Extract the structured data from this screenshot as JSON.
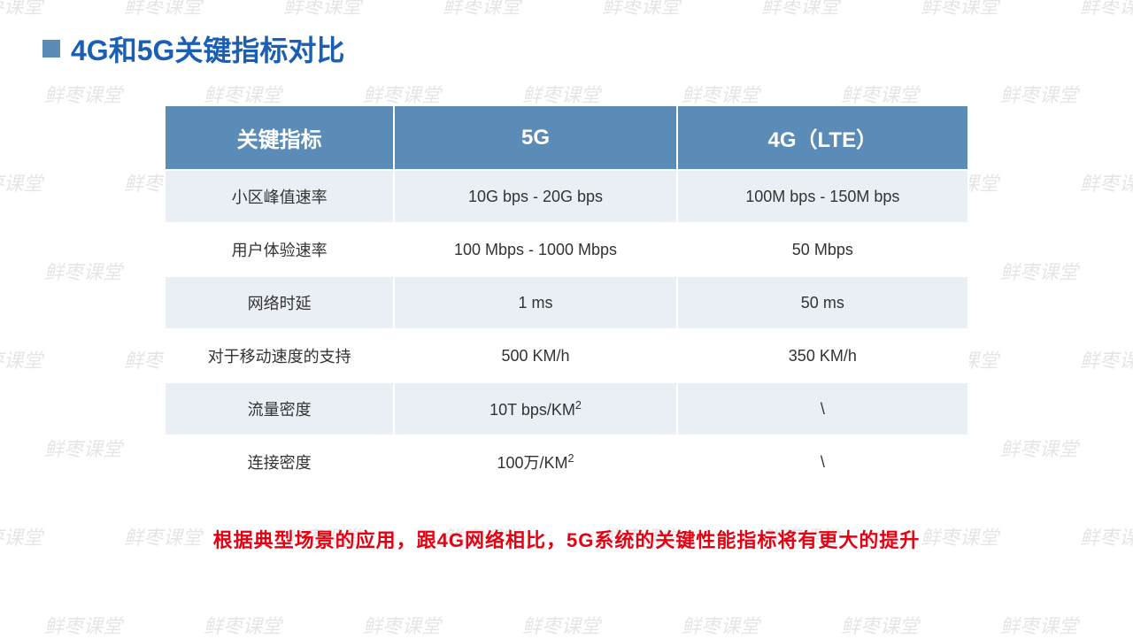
{
  "watermark_text": "鲜枣课堂",
  "title": "4G和5G关键指标对比",
  "table": {
    "columns": [
      "关键指标",
      "5G",
      "4G（LTE）"
    ],
    "rows": [
      [
        "小区峰值速率",
        "10G bps - 20G bps",
        "100M bps - 150M bps"
      ],
      [
        "用户体验速率",
        "100 Mbps - 1000 Mbps",
        "50 Mbps"
      ],
      [
        "网络时延",
        "1 ms",
        "50 ms"
      ],
      [
        "对于移动速度的支持",
        "500 KM/h",
        "350 KM/h"
      ],
      [
        "流量密度",
        "10T bps/KM²",
        "\\"
      ],
      [
        "连接密度",
        "100万/KM²",
        "\\"
      ]
    ],
    "header_bg": "#5b8cb8",
    "header_color": "#ffffff",
    "row_odd_bg": "#eaeff5",
    "row_even_bg": "#ffffff",
    "text_color": "#333333",
    "header_fontsize": 24,
    "cell_fontsize": 18
  },
  "footer": "根据典型场景的应用，跟4G网络相比，5G系统的关键性能指标将有更大的提升",
  "colors": {
    "title": "#1a5fb4",
    "bullet": "#5b8cb8",
    "footer": "#e60012",
    "watermark": "#cccccc"
  }
}
